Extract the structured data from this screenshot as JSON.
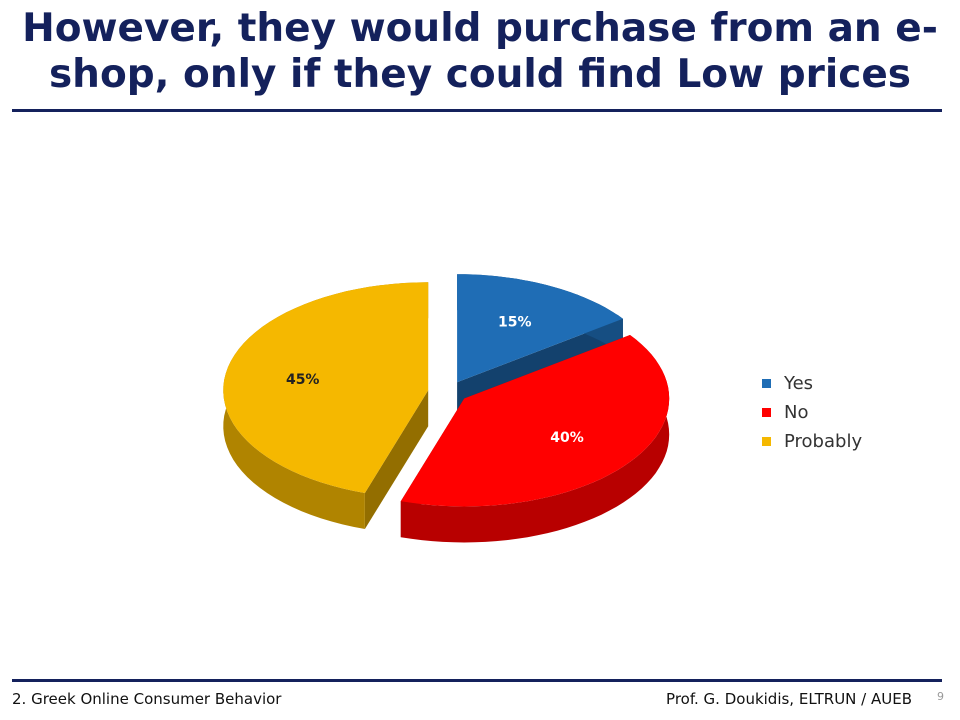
{
  "chart_data": {
    "type": "pie3d",
    "title": "However, they would purchase from an e-shop, only if they could find Low prices",
    "categories": [
      "Yes",
      "No",
      "Probably"
    ],
    "values": [
      15,
      40,
      45
    ],
    "value_labels": [
      "15%",
      "40%",
      "45%"
    ],
    "colors": [
      "#1f6db5",
      "#ff0000",
      "#f5b800"
    ],
    "label_colors": [
      "#ffffff",
      "#ffffff",
      "#222222"
    ]
  },
  "footer": {
    "left": "2. Greek Online Consumer Behavior",
    "right": "Prof. G. Doukidis, ELTRUN / AUEB",
    "page": "9"
  }
}
